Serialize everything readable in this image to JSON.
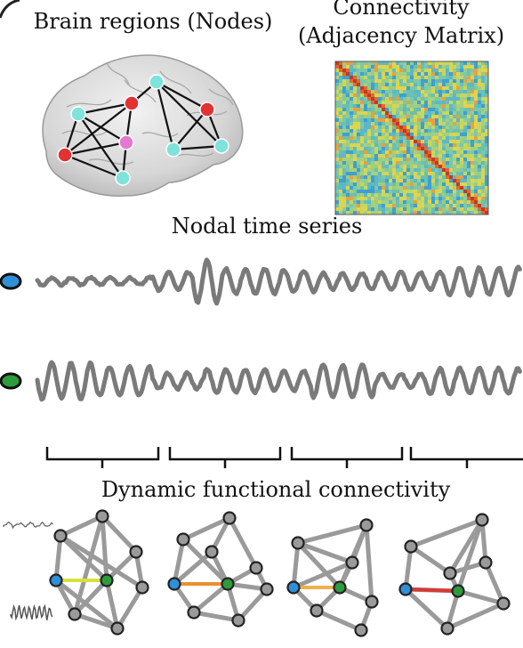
{
  "labels": {
    "brain_regions": "Brain regions (Nodes)",
    "connectivity_line1": "Connectivity",
    "connectivity_line2": "(Adjacency Matrix)",
    "nodal_time_series": "Nodal time series",
    "dynamic_fc": "Dynamic functional connectivity"
  },
  "colors": {
    "node_red": "#e23232",
    "node_cyan": "#7fe3da",
    "node_pink": "#e47ad0",
    "node_blue": "#2f8fd8",
    "node_green": "#2e9b3c",
    "signal_gray": "#7a7a7a",
    "edge_yellow": "#d6e23a",
    "edge_orange": "#e8902f",
    "edge_lightorange": "#f0b04a",
    "edge_red": "#d83a34"
  },
  "dynamic_windows": [
    {
      "highlight_edge_color": "#d6e23a"
    },
    {
      "highlight_edge_color": "#e8902f"
    },
    {
      "highlight_edge_color": "#f0b04a"
    },
    {
      "highlight_edge_color": "#d83a34"
    }
  ]
}
